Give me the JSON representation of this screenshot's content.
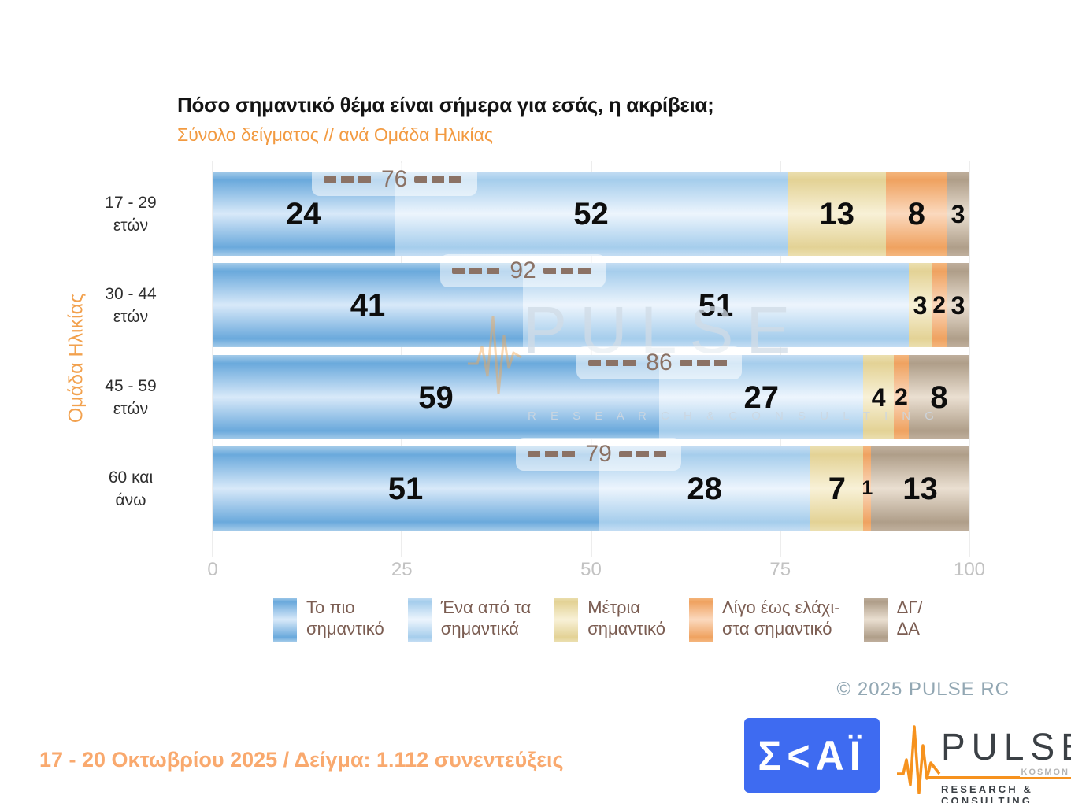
{
  "header": {
    "title": "Πόσο σημαντικό θέμα είναι σήμερα για εσάς, η ακρίβεια;",
    "subtitle": "Σύνολο δείγματος // ανά Ομάδα Ηλικίας"
  },
  "chart_data": {
    "type": "bar",
    "stacked": true,
    "orientation": "horizontal",
    "title": "Πόσο σημαντικό θέμα είναι σήμερα για εσάς, η ακρίβεια;",
    "subtitle": "Σύνολο δείγματος // ανά Ομάδα Ηλικίας",
    "y_axis_title": "Ομάδα Ηλικίας",
    "x_axis": {
      "range": [
        0,
        100
      ],
      "ticks": [
        0,
        25,
        50,
        75,
        100
      ]
    },
    "grid": true,
    "legend_position": "bottom",
    "series": [
      {
        "name": "Το πιο σημαντικό",
        "legend_lines": [
          "Το πιο",
          "σημαντικό"
        ],
        "color": "#6AA9DC",
        "gradient": {
          "edge": "#A4CBE9",
          "dark": "#6AA9DC",
          "light": "#D8E9F9"
        }
      },
      {
        "name": "Ένα από τα σημαντικά",
        "legend_lines": [
          "Ένα από τα",
          "σημαντικά"
        ],
        "color": "#A5CDEC",
        "gradient": {
          "edge": "#C4DDF3",
          "dark": "#A5CDEC",
          "light": "#EDF5FD"
        }
      },
      {
        "name": "Μέτρια σημαντικό",
        "legend_lines": [
          "Μέτρια",
          "σημαντικό"
        ],
        "color": "#E3D295",
        "gradient": {
          "edge": "#EBDFB0",
          "dark": "#E3D295",
          "light": "#F8F1D7"
        }
      },
      {
        "name": "Λίγο έως ελάχιστα σημαντικό",
        "legend_lines": [
          "Λίγο έως ελάχι-",
          "στα σημαντικό"
        ],
        "color": "#EFA260",
        "gradient": {
          "edge": "#F4B67D",
          "dark": "#EFA260",
          "light": "#FBD9BE"
        }
      },
      {
        "name": "ΔΓ/ΔΑ",
        "legend_lines": [
          "ΔΓ/",
          "ΔΑ"
        ],
        "color": "#AF9E89",
        "gradient": {
          "edge": "#BFAF9D",
          "dark": "#AF9E89",
          "light": "#EADFD1"
        }
      }
    ],
    "rows": [
      {
        "label_lines": [
          "17 - 29",
          "ετών"
        ],
        "values": [
          24,
          52,
          13,
          8,
          3
        ],
        "bracket_total": 76
      },
      {
        "label_lines": [
          "30 - 44",
          "ετών"
        ],
        "values": [
          41,
          51,
          3,
          2,
          3
        ],
        "bracket_total": 92
      },
      {
        "label_lines": [
          "45 - 59",
          "ετών"
        ],
        "values": [
          59,
          27,
          4,
          2,
          8
        ],
        "bracket_total": 86
      },
      {
        "label_lines": [
          "60 και",
          "άνω"
        ],
        "values": [
          51,
          28,
          7,
          1,
          13
        ],
        "bracket_total": 79
      }
    ]
  },
  "watermark": {
    "brand": "PULSE",
    "tagline": "R E S E A R C H   &   C O N S U L T I N G"
  },
  "footer": {
    "fieldwork": "17 - 20 Οκτωβρίου 2025  /  Δείγμα:  1.112 συνεντεύξεις",
    "copyright": "©  2025  PULSE RC"
  },
  "logos": {
    "skai_text": "Σ<ΑΪ",
    "pulse_brand": "PULSE",
    "pulse_kosmon": "KOSMON",
    "pulse_tagline": "RESEARCH & CONSULTING"
  }
}
